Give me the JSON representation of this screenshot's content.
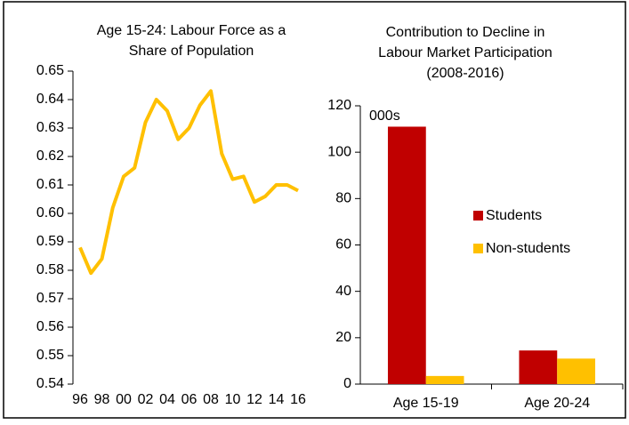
{
  "chart_data": [
    {
      "type": "line",
      "title": [
        "Age 15-24: Labour Force as a",
        "Share of Population"
      ],
      "categories": [
        "96",
        null,
        "98",
        null,
        "00",
        null,
        "02",
        null,
        "04",
        null,
        "06",
        null,
        "08",
        null,
        "10",
        null,
        "12",
        null,
        "14",
        null,
        "16"
      ],
      "values": [
        0.588,
        0.579,
        0.584,
        0.602,
        0.613,
        0.616,
        0.632,
        0.64,
        0.636,
        0.626,
        0.63,
        0.638,
        0.643,
        0.621,
        0.612,
        0.613,
        0.604,
        0.606,
        0.61,
        0.61,
        0.608
      ],
      "color": "#ffc000",
      "ylim": [
        0.54,
        0.65
      ],
      "yticks": [
        0.54,
        0.55,
        0.56,
        0.57,
        0.58,
        0.59,
        {
          "value": 0.6,
          "label": "0.60"
        },
        0.61,
        0.62,
        0.63,
        0.64,
        0.65
      ]
    },
    {
      "type": "bar",
      "title": [
        "Contribution to Decline in",
        "Labour Market Participation",
        "(2008-2016)"
      ],
      "annotation": "000s",
      "categories": [
        "Age 15-19",
        "Age 20-24"
      ],
      "series": [
        {
          "name": "Students",
          "color": "#c00000",
          "values": [
            111,
            14.5
          ]
        },
        {
          "name": "Non-students",
          "color": "#ffc000",
          "values": [
            3.5,
            11
          ]
        }
      ],
      "ylim": [
        0,
        120
      ],
      "yticks": [
        0,
        20,
        40,
        60,
        80,
        100,
        120
      ],
      "legend": "right"
    }
  ]
}
